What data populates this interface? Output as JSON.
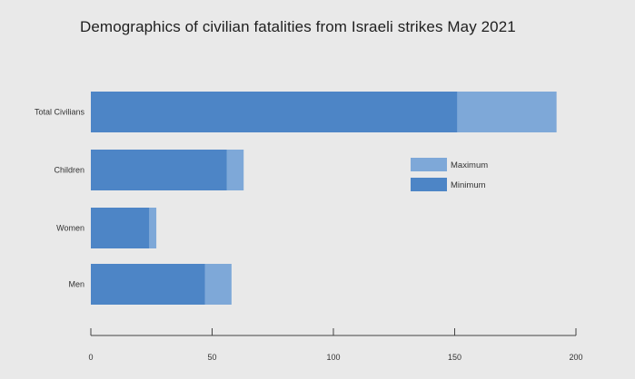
{
  "chart_data": {
    "type": "bar",
    "orientation": "horizontal",
    "title": "Demographics of civilian fatalities from Israeli strikes May 2021",
    "xlabel": "",
    "ylabel": "",
    "categories": [
      "Total Civilians",
      "Children",
      "Women",
      "Men"
    ],
    "series": [
      {
        "name": "Minimum",
        "values": [
          151,
          56,
          24,
          47
        ],
        "color": "#4d85c6"
      },
      {
        "name": "Maximum",
        "values": [
          192,
          63,
          27,
          58
        ],
        "color": "#7ea8d8"
      }
    ],
    "xlim": [
      0,
      200
    ],
    "xticks": [
      0,
      50,
      100,
      150,
      200
    ],
    "grid": false,
    "legend_position": "right"
  }
}
